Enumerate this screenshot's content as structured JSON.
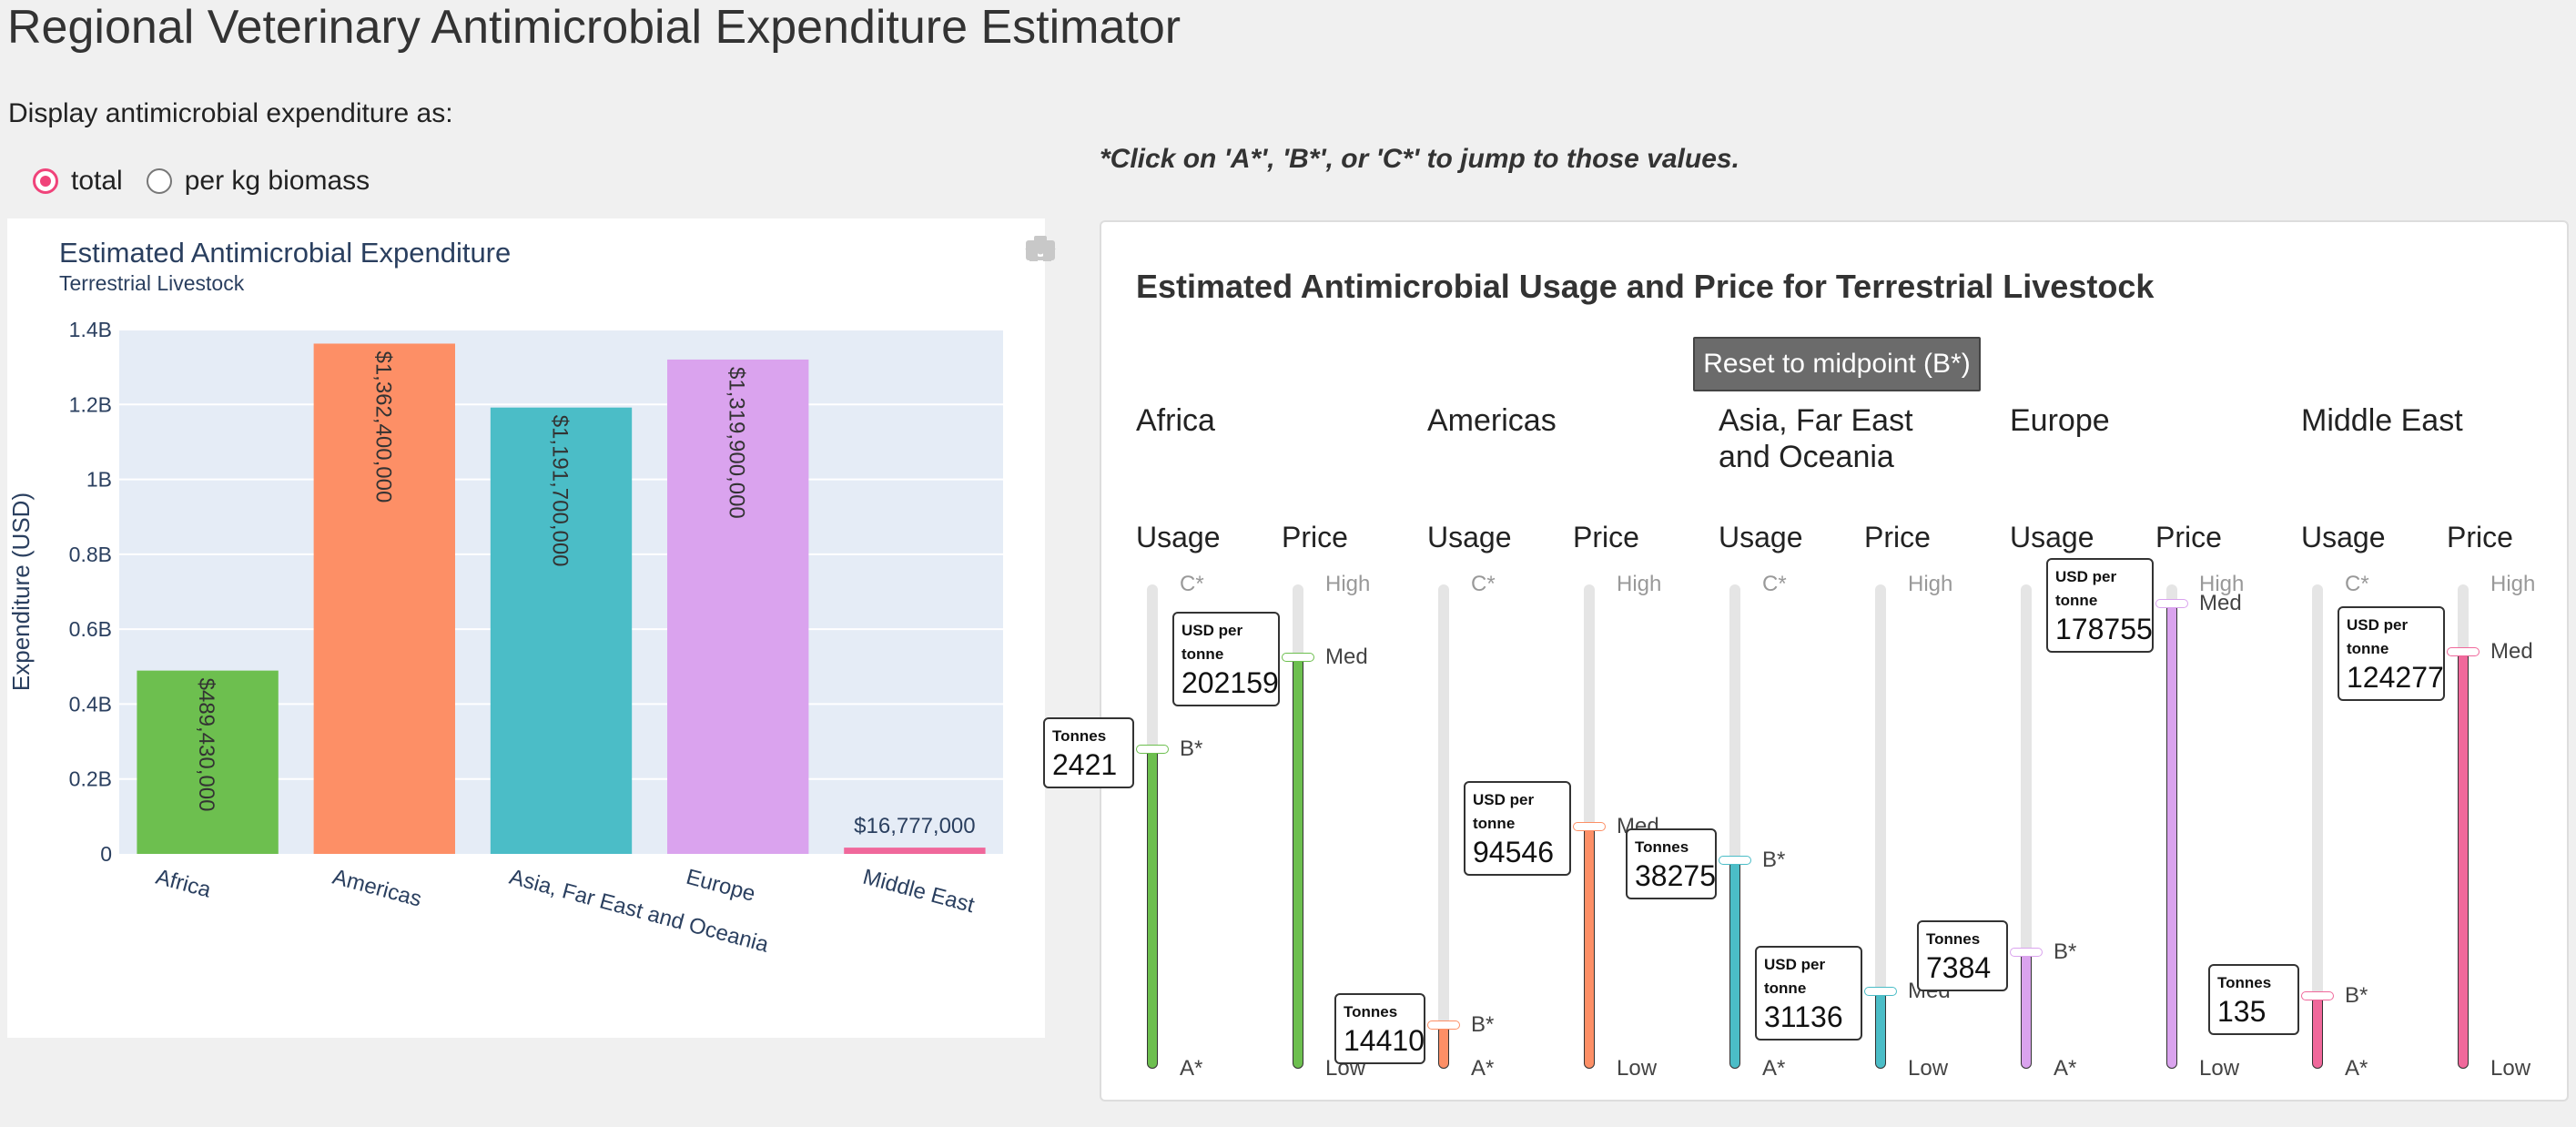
{
  "page": {
    "title": "Regional Veterinary Antimicrobial Expenditure Estimator",
    "display_label": "Display antimicrobial expenditure as:",
    "radio_options": [
      {
        "label": "total",
        "checked": true
      },
      {
        "label": "per kg biomass",
        "checked": false
      }
    ],
    "hint": "*Click on 'A*', 'B*', or 'C*' to jump to those values."
  },
  "modebar": {
    "camera_icon": "camera-icon",
    "home_icon": "home-icon"
  },
  "chart_data": {
    "type": "bar",
    "title": "Estimated Antimicrobial Expenditure",
    "subtitle": "Terrestrial Livestock",
    "xlabel": "",
    "ylabel": "Expenditure (USD)",
    "ylim": [
      0,
      1400000000.0
    ],
    "yticks": [
      {
        "value": 0,
        "label": "0"
      },
      {
        "value": 200000000.0,
        "label": "0.2B"
      },
      {
        "value": 400000000.0,
        "label": "0.4B"
      },
      {
        "value": 600000000.0,
        "label": "0.6B"
      },
      {
        "value": 800000000.0,
        "label": "0.8B"
      },
      {
        "value": 1000000000.0,
        "label": "1B"
      },
      {
        "value": 1200000000.0,
        "label": "1.2B"
      },
      {
        "value": 1400000000.0,
        "label": "1.4B"
      }
    ],
    "categories": [
      "Africa",
      "Americas",
      "Asia, Far East and Oceania",
      "Europe",
      "Middle East"
    ],
    "values": [
      489430000,
      1362400000,
      1191700000,
      1319900000,
      16777000
    ],
    "data_labels": [
      "$489,430,000",
      "$1,362,400,000",
      "$1,191,700,000",
      "$1,319,900,000",
      "$16,777,000"
    ],
    "colors": [
      "#6dbf4f",
      "#fd8f66",
      "#4bbdc7",
      "#daa3ee",
      "#f0689b"
    ],
    "grid": true
  },
  "sliders": {
    "title": "Estimated Antimicrobial Usage and Price for Terrestrial Livestock",
    "reset_label": "Reset to midpoint (B*)",
    "usage_header": "Usage",
    "price_header": "Price",
    "usage_ticks": {
      "low": "A*",
      "mid": "B*",
      "high": "C*"
    },
    "price_ticks": {
      "low": "Low",
      "mid": "Med",
      "high": "High"
    },
    "usage_tooltip_label": "Tonnes",
    "price_tooltip_label": "USD per tonne",
    "regions": [
      {
        "name": "Africa",
        "color": "#6dbf4f",
        "usage_value": "2421",
        "usage_level": 0.66,
        "price_value": "202159",
        "price_level": 0.85
      },
      {
        "name": "Americas",
        "color": "#fd8f66",
        "usage_value": "14410",
        "usage_level": 0.09,
        "price_value": "94546",
        "price_level": 0.5
      },
      {
        "name": "Asia, Far East and Oceania",
        "color": "#4bbdc7",
        "usage_value": "38275",
        "usage_level": 0.43,
        "price_value": "31136",
        "price_level": 0.16
      },
      {
        "name": "Europe",
        "color": "#daa3ee",
        "usage_value": "7384",
        "usage_level": 0.24,
        "price_value": "178755",
        "price_level": 0.96
      },
      {
        "name": "Middle East",
        "color": "#f0689b",
        "usage_value": "135",
        "usage_level": 0.15,
        "price_value": "124277",
        "price_level": 0.86
      }
    ]
  }
}
